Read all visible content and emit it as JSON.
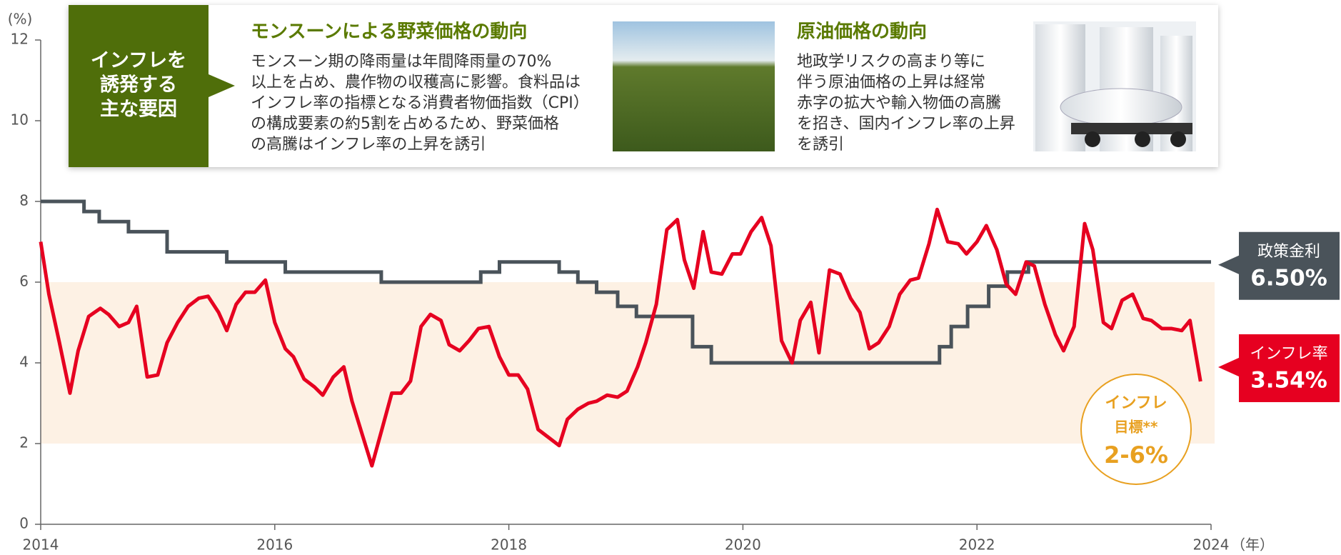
{
  "chart_data": {
    "type": "line",
    "y_label": "(%)",
    "x_label": "（年）",
    "xlim": [
      2014,
      2024
    ],
    "ylim": [
      0,
      12
    ],
    "xticks": [
      2014,
      2016,
      2018,
      2020,
      2022,
      2024
    ],
    "yticks": [
      0,
      2,
      4,
      6,
      8,
      10,
      12
    ],
    "target_band": {
      "range": [
        2,
        6
      ],
      "color": "#fdf1e4",
      "label": [
        "インフレ",
        "目標**",
        "2-6%"
      ]
    },
    "series": [
      {
        "name": "政策金利",
        "color": "#4a535a",
        "step": true,
        "end_label": "6.50%",
        "x": [
          2014,
          2014.37,
          2014.5,
          2014.75,
          2015.08,
          2015.59,
          2016.09,
          2016.91,
          2017.76,
          2017.92,
          2018.43,
          2018.59,
          2018.75,
          2018.93,
          2019.09,
          2019.57,
          2019.73,
          2021.68,
          2021.78,
          2021.92,
          2022.1,
          2022.26,
          2022.44,
          2024
        ],
        "values": [
          8,
          7.75,
          7.5,
          7.25,
          6.75,
          6.5,
          6.25,
          6.0,
          6.25,
          6.5,
          6.25,
          6.0,
          5.75,
          5.4,
          5.15,
          4.4,
          4.0,
          4.4,
          4.9,
          5.4,
          5.9,
          6.25,
          6.5,
          6.5
        ]
      },
      {
        "name": "インフレ率",
        "color": "#e60020",
        "step": false,
        "end_label": "3.54%",
        "x": [
          2014.0,
          2014.07,
          2014.16,
          2014.25,
          2014.32,
          2014.41,
          2014.51,
          2014.58,
          2014.67,
          2014.75,
          2014.82,
          2014.91,
          2015.0,
          2015.08,
          2015.17,
          2015.26,
          2015.35,
          2015.43,
          2015.52,
          2015.59,
          2015.67,
          2015.75,
          2015.83,
          2015.92,
          2016.0,
          2016.09,
          2016.16,
          2016.25,
          2016.34,
          2016.41,
          2016.5,
          2016.59,
          2016.66,
          2016.75,
          2016.83,
          2016.92,
          2017.0,
          2017.08,
          2017.16,
          2017.25,
          2017.33,
          2017.42,
          2017.49,
          2017.58,
          2017.66,
          2017.74,
          2017.83,
          2017.92,
          2018.0,
          2018.08,
          2018.16,
          2018.25,
          2018.34,
          2018.43,
          2018.5,
          2018.59,
          2018.68,
          2018.75,
          2018.84,
          2018.93,
          2019.01,
          2019.1,
          2019.17,
          2019.26,
          2019.35,
          2019.44,
          2019.5,
          2019.58,
          2019.66,
          2019.73,
          2019.82,
          2019.91,
          2019.98,
          2020.07,
          2020.16,
          2020.24,
          2020.33,
          2020.42,
          2020.49,
          2020.58,
          2020.65,
          2020.74,
          2020.83,
          2020.92,
          2021.0,
          2021.08,
          2021.16,
          2021.25,
          2021.34,
          2021.43,
          2021.5,
          2021.59,
          2021.66,
          2021.75,
          2021.84,
          2021.91,
          2022.0,
          2022.08,
          2022.17,
          2022.25,
          2022.33,
          2022.42,
          2022.49,
          2022.58,
          2022.67,
          2022.74,
          2022.83,
          2022.92,
          2022.99,
          2023.08,
          2023.15,
          2023.24,
          2023.33,
          2023.42,
          2023.49,
          2023.58,
          2023.66,
          2023.75,
          2023.82,
          2023.91
        ],
        "values": [
          7.0,
          5.7,
          4.5,
          3.25,
          4.3,
          5.15,
          5.35,
          5.2,
          4.9,
          5.0,
          5.4,
          3.65,
          3.7,
          4.5,
          5.0,
          5.4,
          5.6,
          5.65,
          5.25,
          4.8,
          5.45,
          5.75,
          5.75,
          6.05,
          5.0,
          4.35,
          4.15,
          3.6,
          3.4,
          3.2,
          3.65,
          3.9,
          3.05,
          2.2,
          1.45,
          2.4,
          3.25,
          3.25,
          3.55,
          4.9,
          5.2,
          5.05,
          4.45,
          4.3,
          4.55,
          4.85,
          4.9,
          4.15,
          3.7,
          3.7,
          3.35,
          2.35,
          2.15,
          1.95,
          2.6,
          2.85,
          3.0,
          3.05,
          3.2,
          3.15,
          3.3,
          3.9,
          4.5,
          5.45,
          7.3,
          7.55,
          6.55,
          5.85,
          7.25,
          6.25,
          6.2,
          6.7,
          6.7,
          7.25,
          7.6,
          6.9,
          4.55,
          4.0,
          5.05,
          5.5,
          4.25,
          6.3,
          6.2,
          5.6,
          5.25,
          4.35,
          4.5,
          4.9,
          5.7,
          6.05,
          6.1,
          6.95,
          7.8,
          7.0,
          6.95,
          6.7,
          7.0,
          7.4,
          6.8,
          5.95,
          5.7,
          6.5,
          6.4,
          5.45,
          4.7,
          4.3,
          4.9,
          7.45,
          6.8,
          5.0,
          4.85,
          5.55,
          5.7,
          5.1,
          5.05,
          4.85,
          4.85,
          4.8,
          5.05,
          3.54
        ]
      }
    ]
  },
  "panel": {
    "label": [
      "インフレを",
      "誘発する",
      "主な要因"
    ],
    "sections": [
      {
        "title": "モンスーンによる野菜価格の動向",
        "body": [
          "モンスーン期の降雨量は年間降雨量の70%",
          "以上を占め、農作物の収穫高に影響。食料品は",
          "インフレ率の指標となる消費者物価指数（CPI）",
          "の構成要素の約5割を占めるため、野菜価格",
          "の高騰はインフレ率の上昇を誘引"
        ]
      },
      {
        "title": "原油価格の動向",
        "body": [
          "地政学リスクの高まり等に",
          "伴う原油価格の上昇は経常",
          "赤字の拡大や輸入物価の高騰",
          "を招き、国内インフレ率の上昇",
          "を誘引"
        ]
      }
    ]
  }
}
